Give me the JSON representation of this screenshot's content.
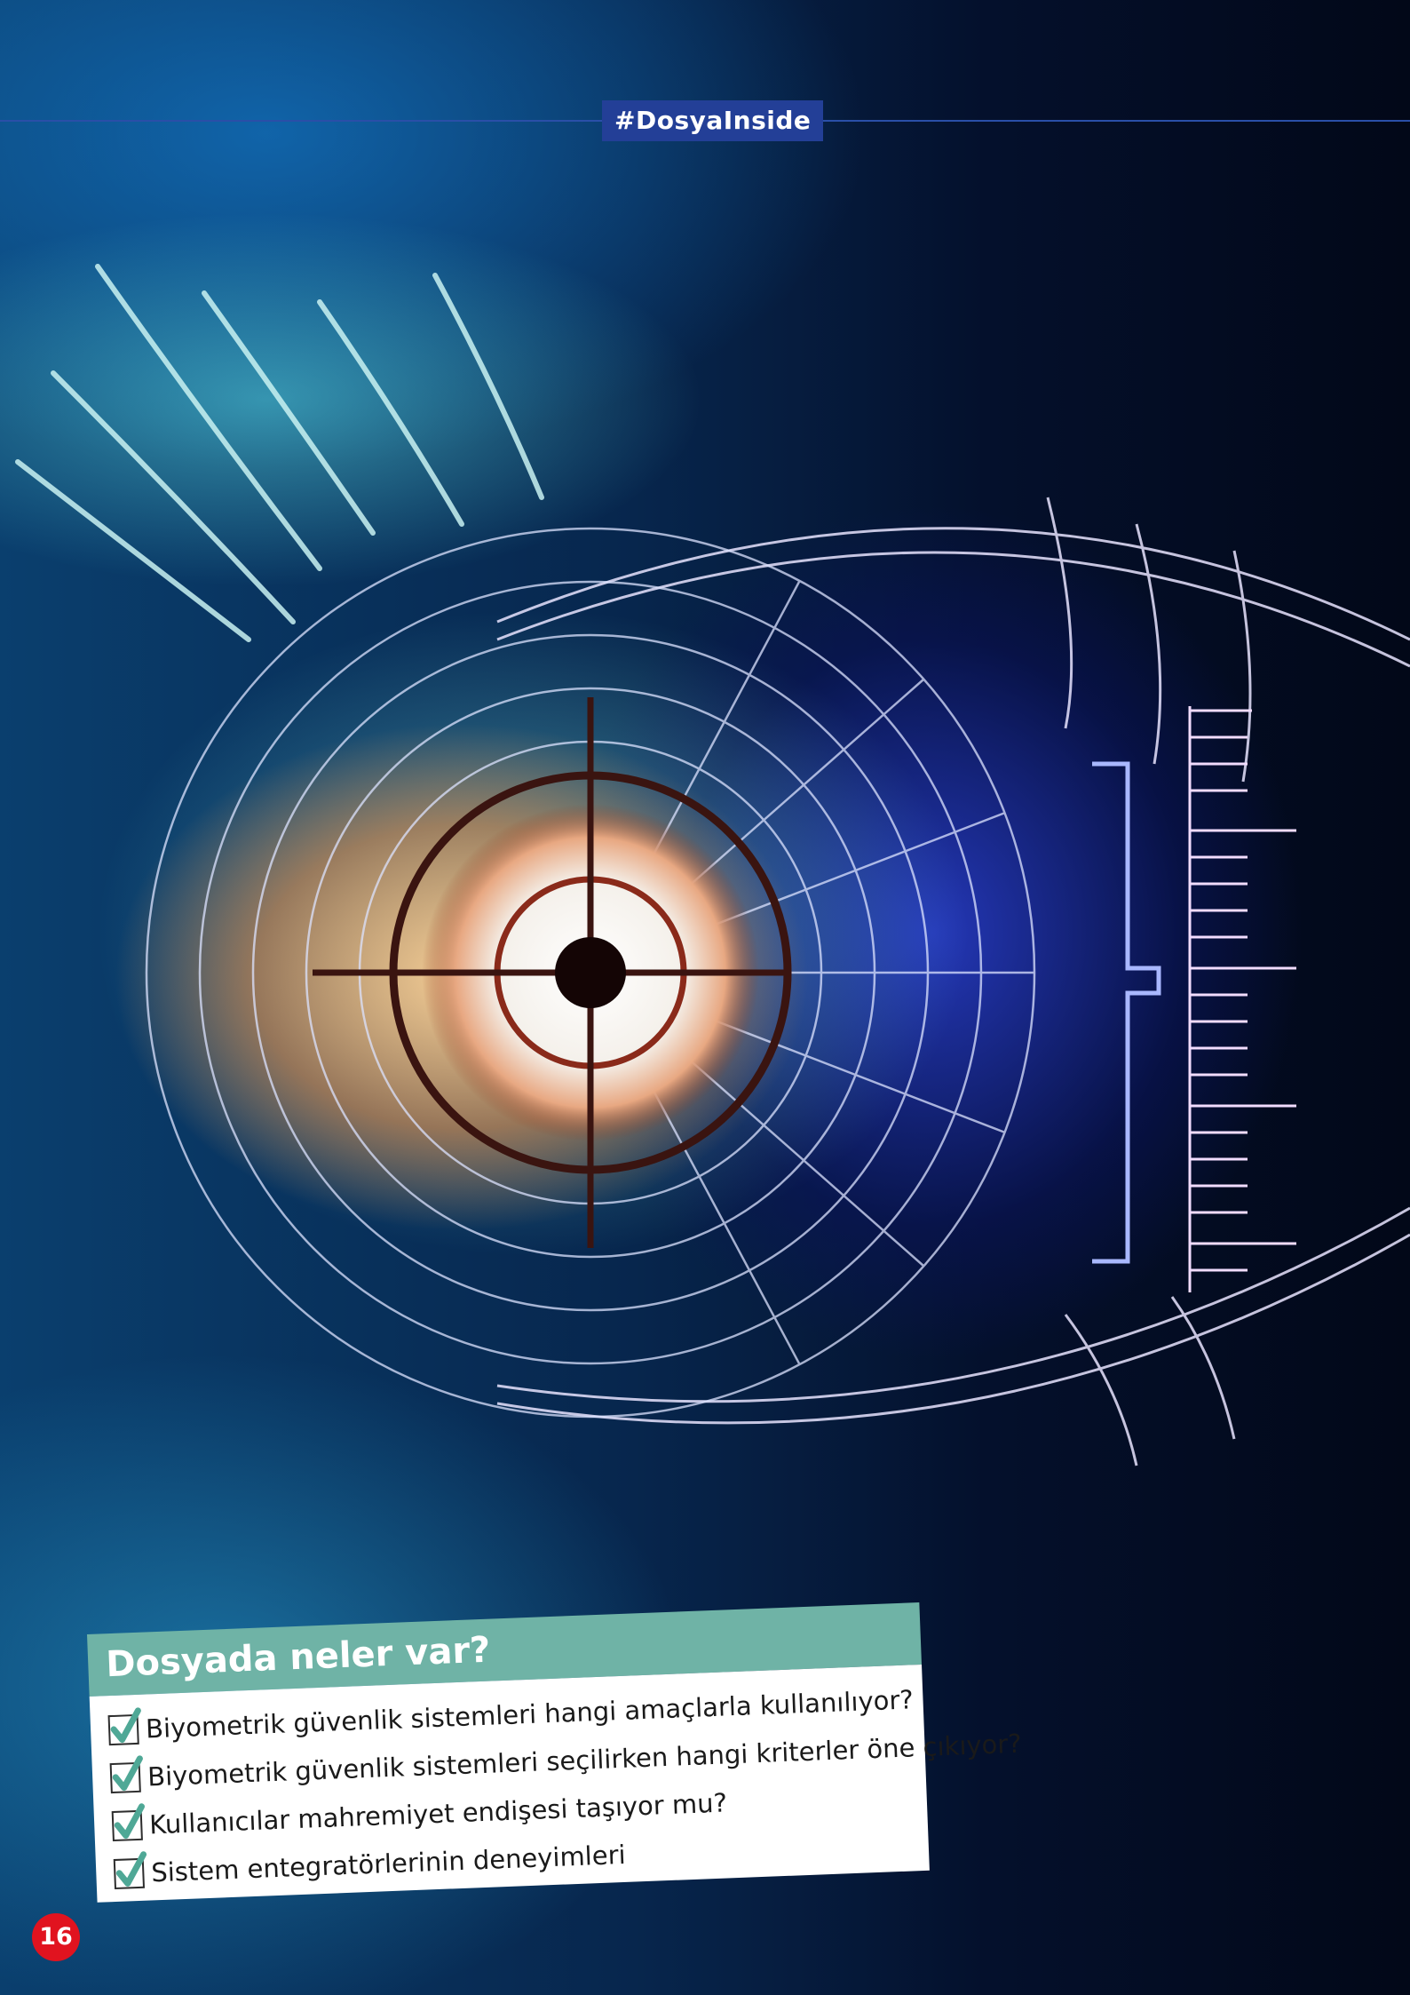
{
  "header": {
    "tag": "#DosyaInside"
  },
  "summary_box": {
    "title": "Dosyada neler var?",
    "items": [
      "Biyometrik güvenlik sistemleri hangi amaçlarla kullanılıyor?",
      "Biyometrik güvenlik sistemleri seçilirken hangi kriterler öne çıkıyor?",
      "Kullanıcılar mahremiyet endişesi taşıyor mu?",
      "Sistem entegratörlerinin deneyimleri"
    ]
  },
  "page_number": "16",
  "colors": {
    "tag_bg": "#233f97",
    "box_header": "#6fb3a6",
    "check_mark": "#4fa896",
    "page_badge": "#e1131f"
  },
  "icons": [
    "checkbox-checked-icon",
    "crosshair-icon"
  ]
}
